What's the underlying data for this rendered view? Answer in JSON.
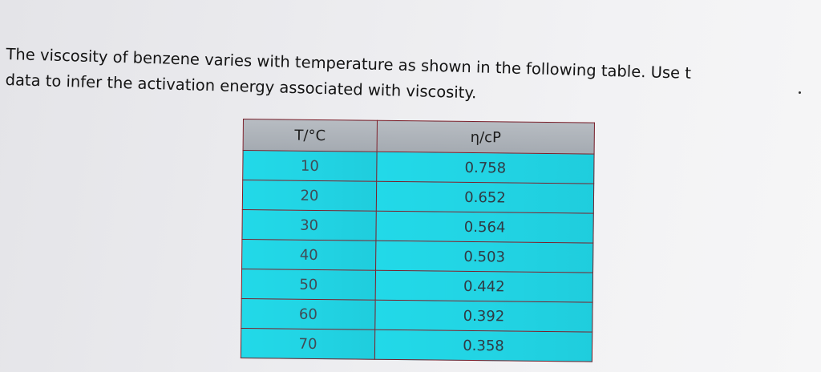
{
  "question": {
    "line1": "The viscosity of benzene varies with temperature as shown in the following table. Use t",
    "line2": "data to infer the activation energy associated with viscosity."
  },
  "table": {
    "headers": [
      "T/°C",
      "η/cP"
    ],
    "rows": [
      [
        "10",
        "0.758"
      ],
      [
        "20",
        "0.652"
      ],
      [
        "30",
        "0.564"
      ],
      [
        "40",
        "0.503"
      ],
      [
        "50",
        "0.442"
      ],
      [
        "60",
        "0.392"
      ],
      [
        "70",
        "0.358"
      ]
    ]
  }
}
